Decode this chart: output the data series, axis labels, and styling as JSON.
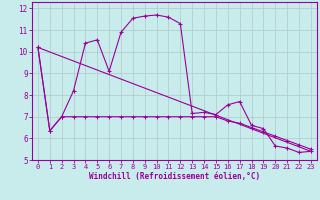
{
  "xlabel": "Windchill (Refroidissement éolien,°C)",
  "background_color": "#c8ecec",
  "line_color": "#990099",
  "grid_color": "#b0c8c8",
  "xlim": [
    -0.5,
    23.5
  ],
  "ylim": [
    5,
    12.3
  ],
  "yticks": [
    5,
    6,
    7,
    8,
    9,
    10,
    11,
    12
  ],
  "xticks": [
    0,
    1,
    2,
    3,
    4,
    5,
    6,
    7,
    8,
    9,
    10,
    11,
    12,
    13,
    14,
    15,
    16,
    17,
    18,
    19,
    20,
    21,
    22,
    23
  ],
  "series1_x": [
    0,
    1,
    2,
    3,
    4,
    5,
    6,
    7,
    8,
    9,
    10,
    11,
    12,
    13,
    14,
    15,
    16,
    17,
    18,
    19,
    20,
    21,
    22,
    23
  ],
  "series1_y": [
    10.2,
    6.35,
    7.0,
    8.2,
    10.4,
    10.55,
    9.1,
    10.9,
    11.55,
    11.65,
    11.7,
    11.6,
    11.3,
    7.15,
    7.2,
    7.1,
    7.55,
    7.7,
    6.6,
    6.45,
    5.65,
    5.55,
    5.35,
    5.4
  ],
  "series2_x": [
    0,
    1,
    2,
    3,
    4,
    5,
    6,
    7,
    8,
    9,
    10,
    11,
    12,
    13,
    14,
    15,
    16,
    17,
    18,
    19,
    20,
    21,
    22,
    23
  ],
  "series2_y": [
    10.2,
    6.35,
    7.0,
    7.0,
    7.0,
    7.0,
    7.0,
    7.0,
    7.0,
    7.0,
    7.0,
    7.0,
    7.0,
    7.0,
    7.0,
    7.0,
    6.8,
    6.7,
    6.5,
    6.3,
    6.1,
    5.9,
    5.7,
    5.5
  ],
  "series3_x": [
    0,
    23
  ],
  "series3_y": [
    10.2,
    5.4
  ]
}
